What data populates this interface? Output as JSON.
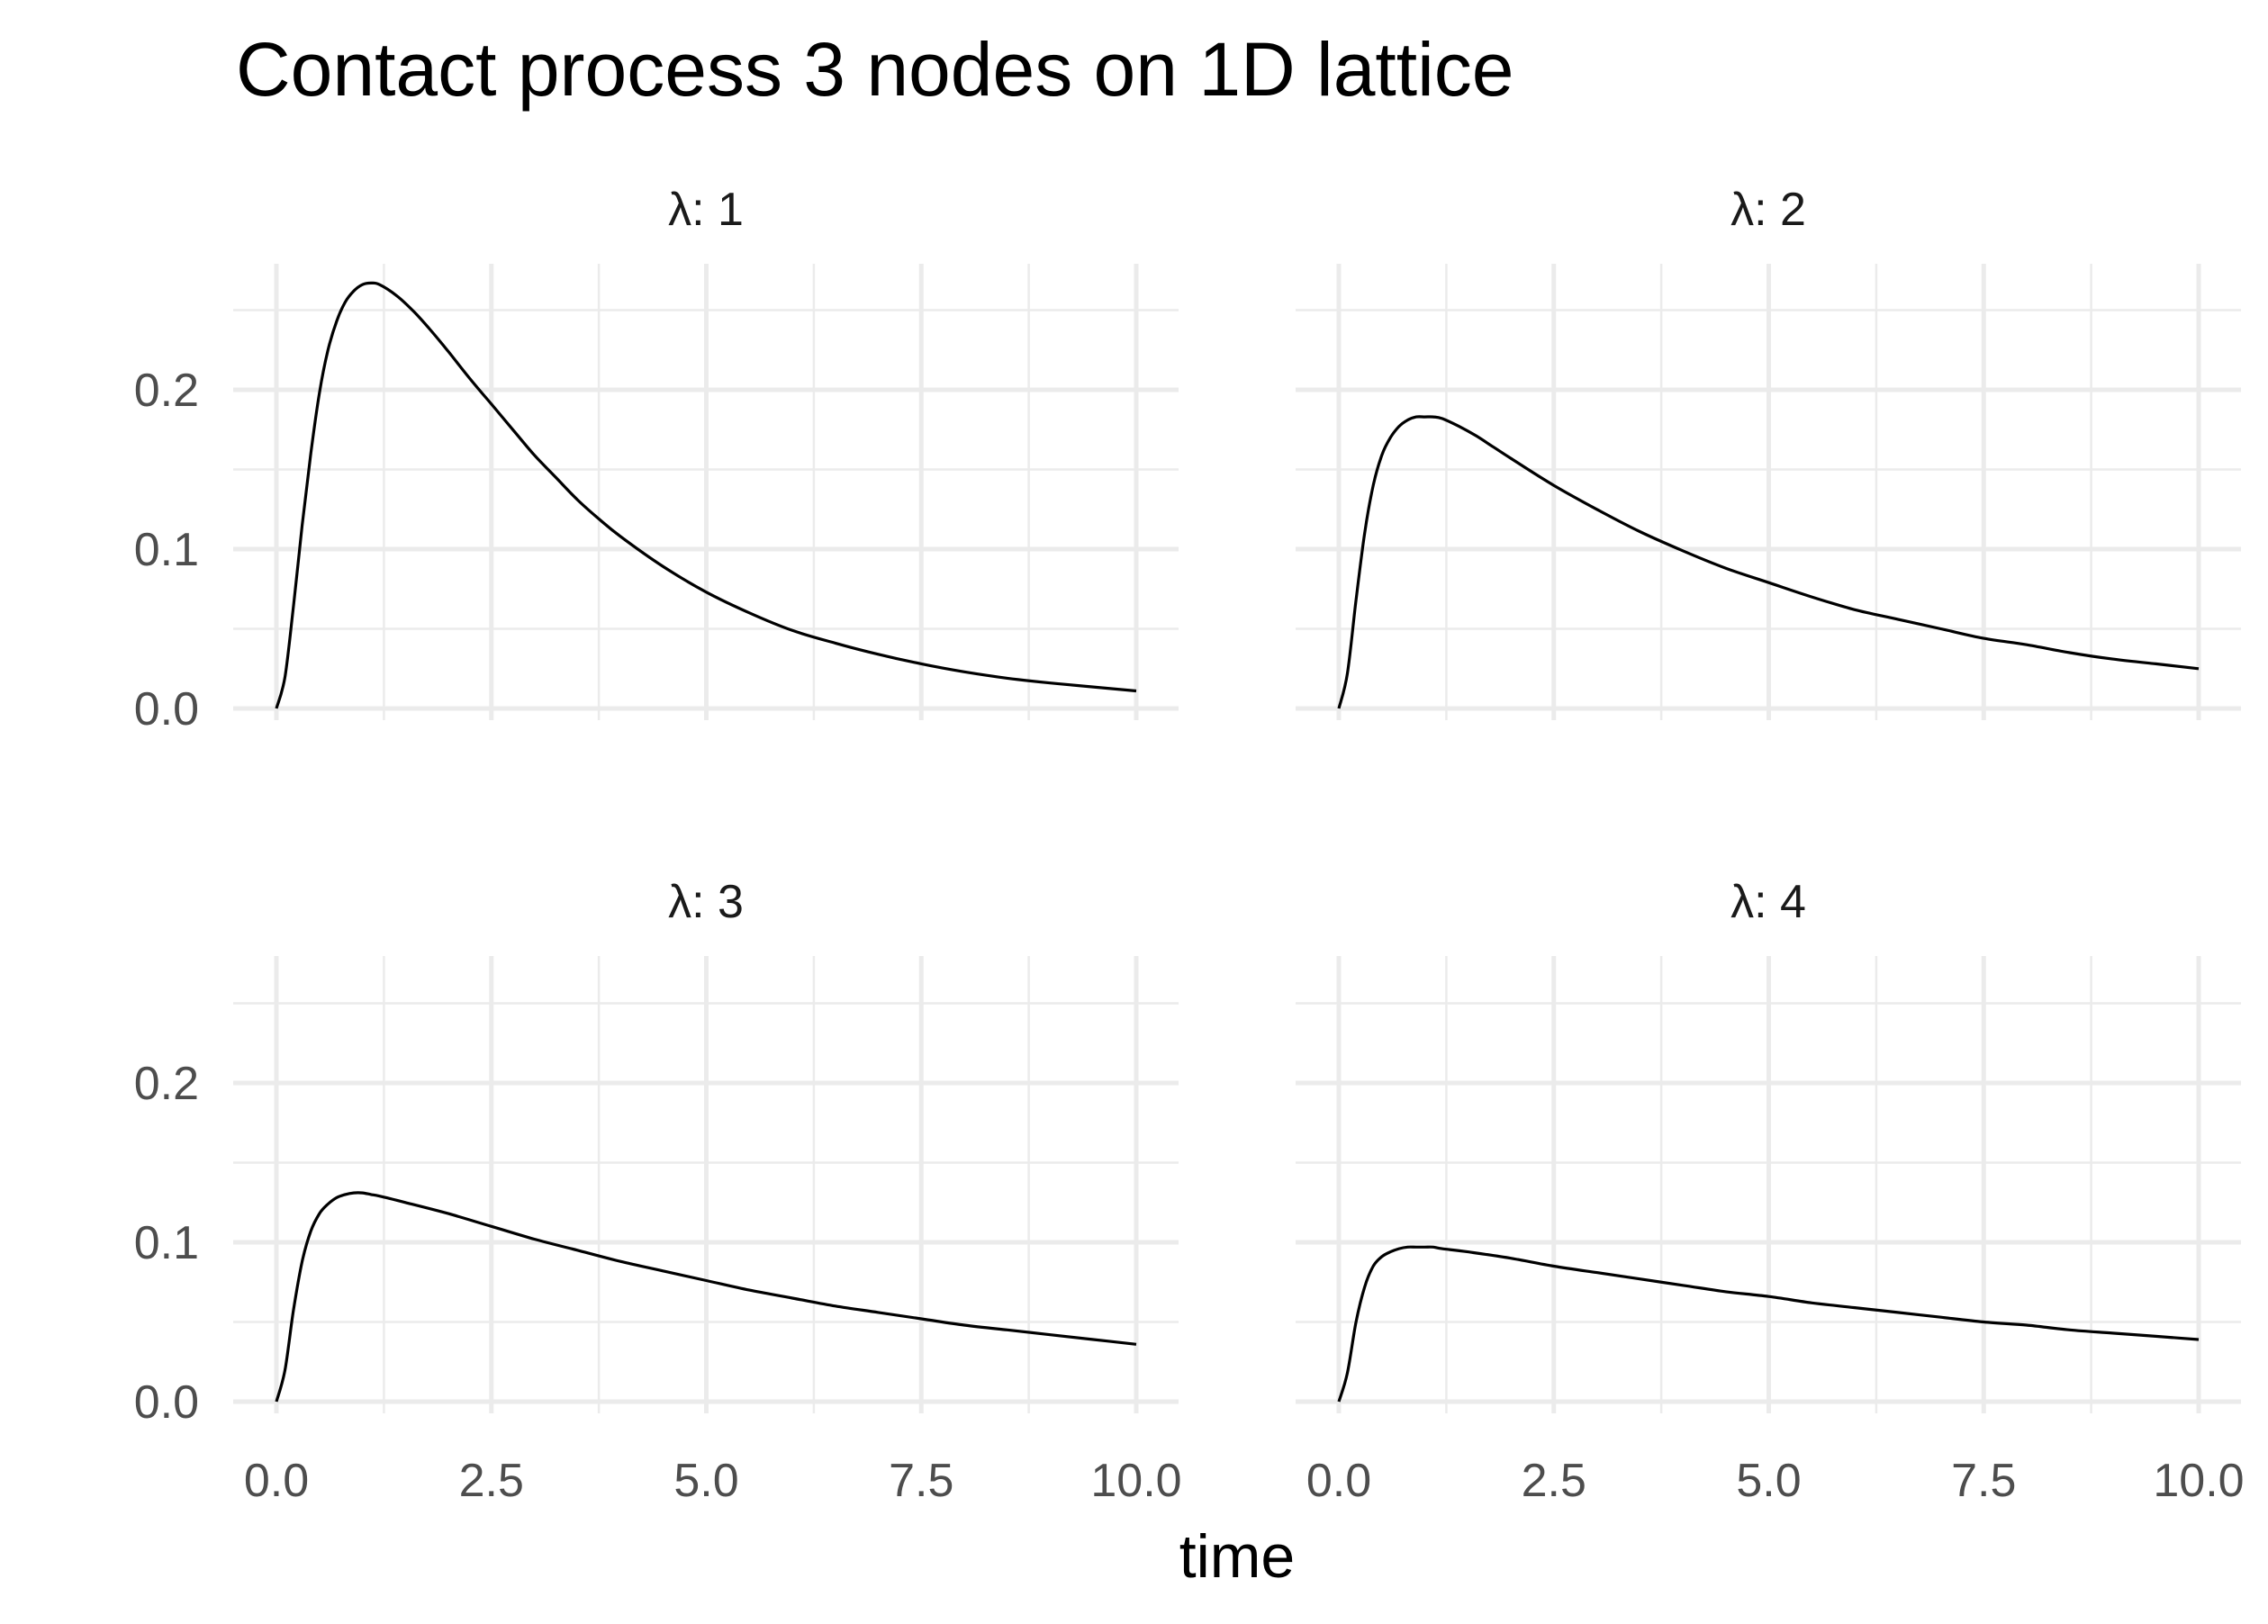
{
  "chart_data": {
    "type": "line",
    "title": "Contact process 3 nodes on 1D lattice",
    "xlabel": "time",
    "ylabel": "",
    "xlim": [
      0,
      10
    ],
    "ylim": [
      0,
      0.25
    ],
    "x_ticks": [
      0,
      2.5,
      5,
      7.5,
      10
    ],
    "x_tick_labels": [
      "0.0",
      "2.5",
      "5.0",
      "7.5",
      "10.0"
    ],
    "y_ticks": [
      0,
      0.1,
      0.2
    ],
    "y_tick_labels": [
      "0.0",
      "0.1",
      "0.2"
    ],
    "grid": true,
    "legend": "none",
    "line_color": "#000000",
    "grid_color": "#ebebeb",
    "facets": [
      {
        "label": "λ: 1",
        "x": [
          0,
          0.1,
          0.2,
          0.3,
          0.4,
          0.5,
          0.6,
          0.7,
          0.8,
          0.9,
          1.0,
          1.1,
          1.2,
          1.4,
          1.6,
          1.8,
          2.0,
          2.25,
          2.5,
          2.75,
          3.0,
          3.25,
          3.5,
          3.75,
          4.0,
          4.5,
          5.0,
          5.5,
          6.0,
          6.5,
          7.0,
          7.5,
          8.0,
          8.5,
          9.0,
          9.5,
          10.0
        ],
        "y": [
          0,
          0.02,
          0.065,
          0.115,
          0.16,
          0.198,
          0.225,
          0.243,
          0.255,
          0.262,
          0.266,
          0.267,
          0.266,
          0.259,
          0.249,
          0.237,
          0.224,
          0.207,
          0.191,
          0.175,
          0.159,
          0.145,
          0.131,
          0.119,
          0.108,
          0.089,
          0.073,
          0.06,
          0.049,
          0.041,
          0.034,
          0.028,
          0.023,
          0.019,
          0.016,
          0.0135,
          0.011
        ]
      },
      {
        "label": "λ: 2",
        "x": [
          0,
          0.1,
          0.2,
          0.3,
          0.4,
          0.5,
          0.6,
          0.7,
          0.8,
          0.9,
          1.0,
          1.1,
          1.2,
          1.4,
          1.6,
          1.8,
          2.0,
          2.5,
          3.0,
          3.5,
          4.0,
          4.5,
          5.0,
          5.5,
          6.0,
          6.5,
          7.0,
          7.5,
          8.0,
          8.5,
          9.0,
          9.5,
          10.0
        ],
        "y": [
          0,
          0.022,
          0.068,
          0.11,
          0.14,
          0.159,
          0.17,
          0.177,
          0.181,
          0.183,
          0.183,
          0.183,
          0.182,
          0.177,
          0.171,
          0.164,
          0.157,
          0.14,
          0.125,
          0.111,
          0.099,
          0.088,
          0.079,
          0.07,
          0.062,
          0.056,
          0.05,
          0.044,
          0.04,
          0.035,
          0.031,
          0.028,
          0.025
        ]
      },
      {
        "label": "λ: 3",
        "x": [
          0,
          0.1,
          0.2,
          0.3,
          0.4,
          0.5,
          0.6,
          0.7,
          0.8,
          0.9,
          1.0,
          1.1,
          1.2,
          1.5,
          2.0,
          2.5,
          3.0,
          3.5,
          4.0,
          4.5,
          5.0,
          5.5,
          6.0,
          6.5,
          7.0,
          7.5,
          8.0,
          8.5,
          9.0,
          9.5,
          10.0
        ],
        "y": [
          0,
          0.02,
          0.058,
          0.088,
          0.107,
          0.118,
          0.124,
          0.128,
          0.13,
          0.131,
          0.131,
          0.13,
          0.129,
          0.125,
          0.118,
          0.11,
          0.102,
          0.095,
          0.088,
          0.082,
          0.076,
          0.07,
          0.065,
          0.06,
          0.056,
          0.052,
          0.048,
          0.045,
          0.042,
          0.039,
          0.036
        ]
      },
      {
        "label": "λ: 4",
        "x": [
          0,
          0.1,
          0.2,
          0.3,
          0.4,
          0.5,
          0.6,
          0.7,
          0.8,
          0.9,
          1.0,
          1.1,
          1.2,
          1.5,
          2.0,
          2.5,
          3.0,
          3.5,
          4.0,
          4.5,
          5.0,
          5.5,
          6.0,
          6.5,
          7.0,
          7.5,
          8.0,
          8.5,
          9.0,
          9.5,
          10.0
        ],
        "y": [
          0,
          0.018,
          0.05,
          0.072,
          0.085,
          0.091,
          0.094,
          0.096,
          0.097,
          0.097,
          0.097,
          0.097,
          0.096,
          0.094,
          0.09,
          0.085,
          0.081,
          0.077,
          0.073,
          0.069,
          0.066,
          0.062,
          0.059,
          0.056,
          0.053,
          0.05,
          0.048,
          0.045,
          0.043,
          0.041,
          0.039
        ]
      }
    ]
  }
}
